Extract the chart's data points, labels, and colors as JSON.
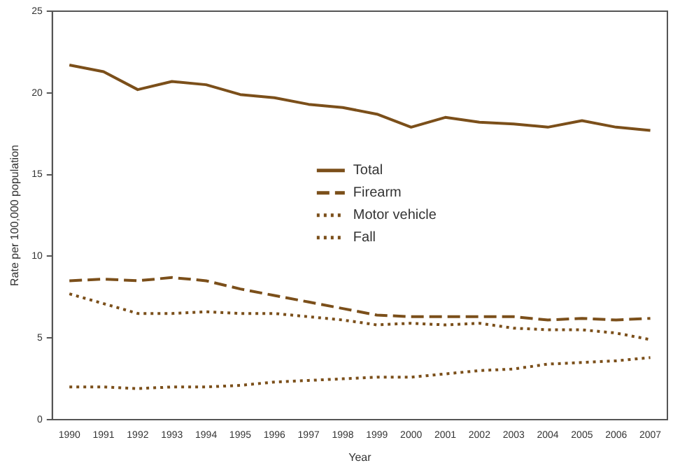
{
  "chart_data": {
    "type": "line",
    "xlabel": "Year",
    "ylabel": "Rate per 100,000 population",
    "categories": [
      "1990",
      "1991",
      "1992",
      "1993",
      "1994",
      "1995",
      "1996",
      "1997",
      "1998",
      "1999",
      "2000",
      "2001",
      "2002",
      "2003",
      "2004",
      "2005",
      "2006",
      "2007"
    ],
    "series": [
      {
        "name": "Total",
        "color": "#7b4f1a",
        "line_style": "solid",
        "values": [
          21.7,
          21.3,
          20.2,
          20.7,
          20.5,
          19.9,
          19.7,
          19.3,
          19.1,
          18.7,
          17.9,
          18.5,
          18.2,
          18.1,
          17.9,
          18.3,
          17.9,
          17.7
        ]
      },
      {
        "name": "Firearm",
        "color": "#7b4f1a",
        "line_style": "dashed",
        "values": [
          8.5,
          8.6,
          8.5,
          8.7,
          8.5,
          8.0,
          7.6,
          7.2,
          6.8,
          6.4,
          6.3,
          6.3,
          6.3,
          6.3,
          6.1,
          6.2,
          6.1,
          6.2
        ]
      },
      {
        "name": "Motor vehicle",
        "color": "#7b4f1a",
        "line_style": "dotted",
        "values": [
          7.7,
          7.1,
          6.5,
          6.5,
          6.6,
          6.5,
          6.5,
          6.3,
          6.1,
          5.8,
          5.9,
          5.8,
          5.9,
          5.6,
          5.5,
          5.5,
          5.3,
          4.9
        ]
      },
      {
        "name": "Fall",
        "color": "#7b4f1a",
        "line_style": "dotted",
        "values": [
          2.0,
          2.0,
          1.9,
          2.0,
          2.0,
          2.1,
          2.3,
          2.4,
          2.5,
          2.6,
          2.6,
          2.8,
          3.0,
          3.1,
          3.4,
          3.5,
          3.6,
          3.8
        ]
      }
    ],
    "ylim": [
      0,
      25
    ],
    "yticks": [
      0,
      5,
      10,
      15,
      20,
      25
    ],
    "grid": false,
    "legend": "center",
    "marker": "none"
  }
}
